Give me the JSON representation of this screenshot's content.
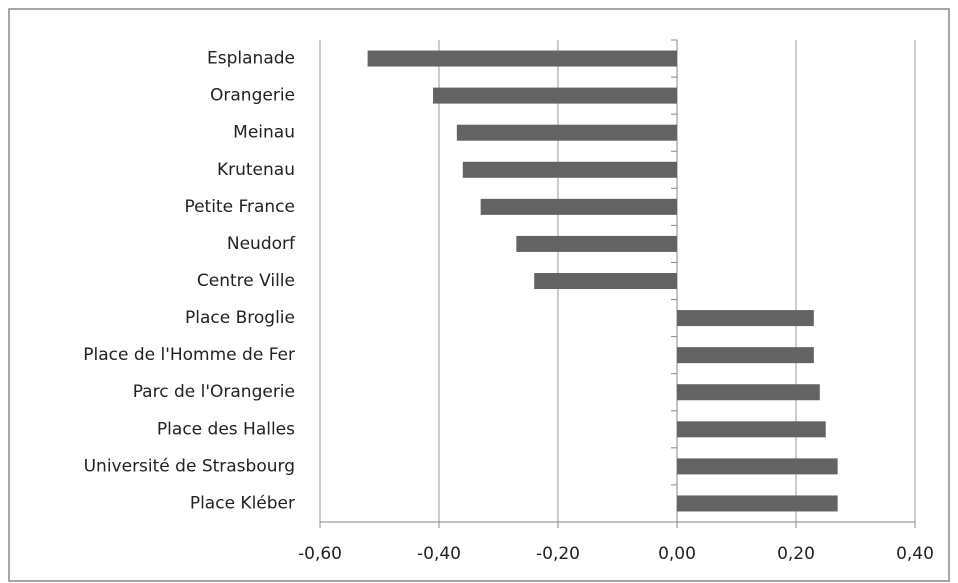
{
  "chart_data": {
    "type": "bar",
    "orientation": "horizontal",
    "categories": [
      "Esplanade",
      "Orangerie",
      "Meinau",
      "Krutenau",
      "Petite France",
      "Neudorf",
      "Centre Ville",
      "Place Broglie",
      "Place de l'Homme de Fer",
      "Parc de l'Orangerie",
      "Place des Halles",
      "Université de Strasbourg",
      "Place Kléber"
    ],
    "values": [
      -0.52,
      -0.41,
      -0.37,
      -0.36,
      -0.33,
      -0.27,
      -0.24,
      0.23,
      0.23,
      0.24,
      0.25,
      0.27,
      0.27
    ],
    "color": "#636363",
    "xlim": [
      -0.6,
      0.4
    ],
    "xticks": [
      {
        "value": -0.6,
        "label": "-0,60"
      },
      {
        "value": -0.4,
        "label": "-0,40"
      },
      {
        "value": -0.2,
        "label": "-0,20"
      },
      {
        "value": 0,
        "label": "0,00"
      },
      {
        "value": 0.2,
        "label": "0,20"
      },
      {
        "value": 0.4,
        "label": "0,40"
      }
    ],
    "grid": true
  }
}
